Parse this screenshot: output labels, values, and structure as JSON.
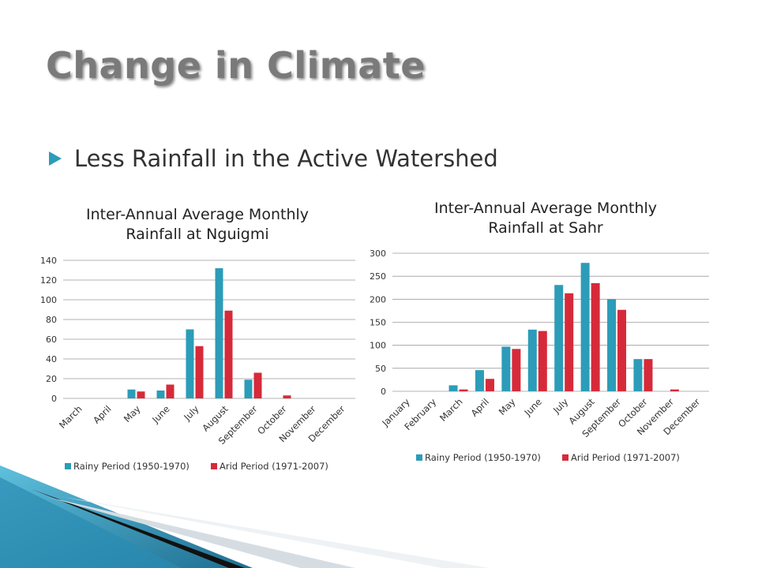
{
  "slide": {
    "title": "Change in Climate",
    "bullet": "Less Rainfall in the Active Watershed",
    "bullet_icon": "play-triangle-icon",
    "colors": {
      "accent": "#2c9cb8",
      "title": "#7a7a7a"
    }
  },
  "chart_data": [
    {
      "type": "bar",
      "title": "Inter-Annual Average Monthly Rainfall at Nguigmi",
      "title_lines": [
        "Inter-Annual Average Monthly",
        "Rainfall at Nguigmi"
      ],
      "categories": [
        "March",
        "April",
        "May",
        "June",
        "July",
        "August",
        "September",
        "October",
        "November",
        "December"
      ],
      "series": [
        {
          "name": "Rainy Period (1950-1970)",
          "color": "#2c9cb8",
          "values": [
            0,
            0,
            9,
            8,
            70,
            132,
            19,
            0,
            0,
            0
          ]
        },
        {
          "name": "Arid Period (1971-2007)",
          "color": "#d62a3a",
          "values": [
            0,
            0,
            7,
            14,
            53,
            89,
            26,
            3,
            0,
            0
          ]
        }
      ],
      "ylim": [
        0,
        140
      ],
      "yticks": [
        "0",
        "20",
        "40",
        "60",
        "80",
        "100",
        "120",
        "140"
      ],
      "grid": true,
      "legend": "bottom"
    },
    {
      "type": "bar",
      "title": "Inter-Annual Average Monthly Rainfall at Sahr",
      "title_lines": [
        "Inter-Annual Average Monthly",
        "Rainfall at Sahr"
      ],
      "categories": [
        "January",
        "February",
        "March",
        "April",
        "May",
        "June",
        "July",
        "August",
        "September",
        "October",
        "November",
        "December"
      ],
      "series": [
        {
          "name": "Rainy Period (1950-1970)",
          "color": "#2c9cb8",
          "values": [
            0,
            0,
            13,
            46,
            97,
            134,
            231,
            279,
            200,
            70,
            0,
            0
          ]
        },
        {
          "name": "Arid Period (1971-2007)",
          "color": "#d62a3a",
          "values": [
            0,
            0,
            4,
            27,
            92,
            131,
            213,
            235,
            177,
            70,
            4,
            0
          ]
        }
      ],
      "ylim": [
        0,
        300
      ],
      "yticks": [
        "0",
        "50",
        "100",
        "150",
        "200",
        "250",
        "300"
      ],
      "grid": true,
      "legend": "bottom"
    }
  ]
}
